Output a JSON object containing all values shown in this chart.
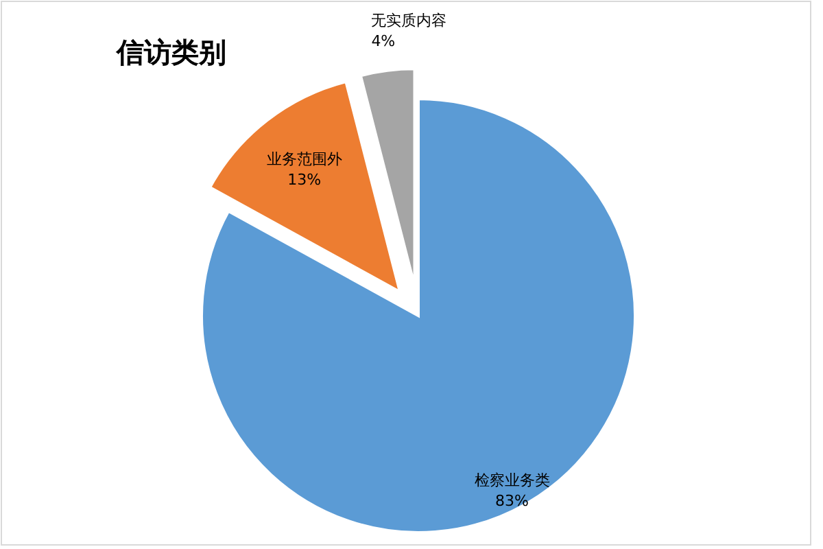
{
  "chart_data": {
    "type": "pie",
    "title": "信访类别",
    "categories": [
      "检察业务类",
      "业务范围外",
      "无实质内容"
    ],
    "values": [
      83,
      13,
      4
    ],
    "colors": [
      "#5b9bd5",
      "#ed7d31",
      "#a5a5a5"
    ],
    "value_labels": [
      "83%",
      "13%",
      "4%"
    ],
    "legend": false
  }
}
